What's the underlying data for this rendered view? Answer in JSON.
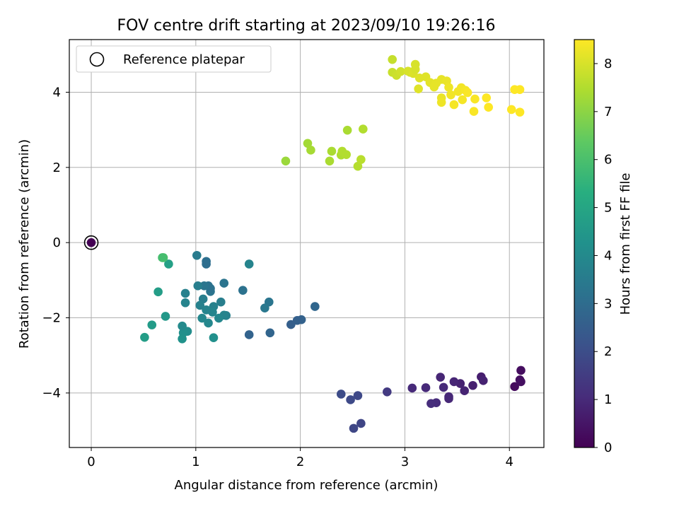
{
  "chart_data": {
    "type": "scatter",
    "title": "FOV centre drift starting at 2023/09/10 19:26:16",
    "xlabel": "Angular distance from reference (arcmin)",
    "ylabel": "Rotation from reference (arcmin)",
    "xlim": [
      -0.21,
      4.33
    ],
    "ylim": [
      -5.45,
      5.4
    ],
    "xticks": [
      0,
      1,
      2,
      3,
      4
    ],
    "yticks": [
      -4,
      -2,
      0,
      2,
      4
    ],
    "grid": true,
    "legend": {
      "placement": "upper-left",
      "entries": [
        "Reference platepar"
      ]
    },
    "reference_point": {
      "x": 0,
      "y": 0
    },
    "colorbar": {
      "label": "Hours from first FF file",
      "min": 0,
      "max": 8.5,
      "ticks": [
        0,
        1,
        2,
        3,
        4,
        5,
        6,
        7,
        8
      ],
      "colormap": "viridis"
    },
    "points": [
      {
        "x": 0.0,
        "y": 0.0,
        "c": 0.0
      },
      {
        "x": 4.05,
        "y": -3.83,
        "c": 0.25
      },
      {
        "x": 4.1,
        "y": -3.65,
        "c": 0.3
      },
      {
        "x": 4.11,
        "y": -3.7,
        "c": 0.35
      },
      {
        "x": 4.11,
        "y": -3.4,
        "c": 0.3
      },
      {
        "x": 3.73,
        "y": -3.57,
        "c": 0.7
      },
      {
        "x": 3.75,
        "y": -3.67,
        "c": 0.8
      },
      {
        "x": 3.65,
        "y": -3.8,
        "c": 0.75
      },
      {
        "x": 3.57,
        "y": -3.94,
        "c": 0.85
      },
      {
        "x": 3.53,
        "y": -3.75,
        "c": 0.8
      },
      {
        "x": 3.47,
        "y": -3.7,
        "c": 0.9
      },
      {
        "x": 3.42,
        "y": -4.1,
        "c": 0.95
      },
      {
        "x": 3.42,
        "y": -4.15,
        "c": 0.95
      },
      {
        "x": 3.37,
        "y": -3.85,
        "c": 1.0
      },
      {
        "x": 3.34,
        "y": -3.58,
        "c": 0.9
      },
      {
        "x": 3.3,
        "y": -4.26,
        "c": 1.05
      },
      {
        "x": 3.25,
        "y": -4.28,
        "c": 1.1
      },
      {
        "x": 3.2,
        "y": -3.86,
        "c": 1.0
      },
      {
        "x": 3.07,
        "y": -3.87,
        "c": 1.0
      },
      {
        "x": 2.83,
        "y": -3.97,
        "c": 1.45
      },
      {
        "x": 2.58,
        "y": -4.81,
        "c": 1.75
      },
      {
        "x": 2.51,
        "y": -4.94,
        "c": 1.8
      },
      {
        "x": 2.55,
        "y": -4.07,
        "c": 1.85
      },
      {
        "x": 2.48,
        "y": -4.18,
        "c": 1.9
      },
      {
        "x": 2.39,
        "y": -4.03,
        "c": 1.95
      },
      {
        "x": 2.14,
        "y": -1.7,
        "c": 2.8
      },
      {
        "x": 2.01,
        "y": -2.05,
        "c": 2.65
      },
      {
        "x": 1.97,
        "y": -2.07,
        "c": 2.6
      },
      {
        "x": 1.91,
        "y": -2.18,
        "c": 2.55
      },
      {
        "x": 1.71,
        "y": -2.4,
        "c": 2.75
      },
      {
        "x": 1.51,
        "y": -2.45,
        "c": 2.7
      },
      {
        "x": 1.7,
        "y": -1.58,
        "c": 3.3
      },
      {
        "x": 1.66,
        "y": -1.74,
        "c": 3.4
      },
      {
        "x": 1.51,
        "y": -0.57,
        "c": 3.8
      },
      {
        "x": 1.45,
        "y": -1.27,
        "c": 3.2
      },
      {
        "x": 1.27,
        "y": -1.08,
        "c": 3.25
      },
      {
        "x": 1.29,
        "y": -1.94,
        "c": 3.7
      },
      {
        "x": 1.27,
        "y": -1.93,
        "c": 3.8
      },
      {
        "x": 1.24,
        "y": -1.58,
        "c": 3.6
      },
      {
        "x": 1.22,
        "y": -2.01,
        "c": 3.9
      },
      {
        "x": 1.17,
        "y": -1.7,
        "c": 3.7
      },
      {
        "x": 1.16,
        "y": -1.85,
        "c": 3.85
      },
      {
        "x": 1.14,
        "y": -1.3,
        "c": 3.3
      },
      {
        "x": 1.14,
        "y": -1.22,
        "c": 3.2
      },
      {
        "x": 1.12,
        "y": -1.15,
        "c": 3.2
      },
      {
        "x": 1.1,
        "y": -0.5,
        "c": 3.1
      },
      {
        "x": 1.1,
        "y": -0.57,
        "c": 3.05
      },
      {
        "x": 1.08,
        "y": -1.15,
        "c": 3.3
      },
      {
        "x": 1.07,
        "y": -1.5,
        "c": 3.6
      },
      {
        "x": 1.06,
        "y": -2.01,
        "c": 3.9
      },
      {
        "x": 1.1,
        "y": -1.79,
        "c": 3.8
      },
      {
        "x": 1.12,
        "y": -2.14,
        "c": 3.9
      },
      {
        "x": 1.17,
        "y": -2.53,
        "c": 4.2
      },
      {
        "x": 1.04,
        "y": -1.67,
        "c": 3.7
      },
      {
        "x": 1.02,
        "y": -1.15,
        "c": 3.6
      },
      {
        "x": 1.01,
        "y": -0.34,
        "c": 3.5
      },
      {
        "x": 0.92,
        "y": -2.36,
        "c": 4.1
      },
      {
        "x": 0.88,
        "y": -2.4,
        "c": 4.2
      },
      {
        "x": 0.87,
        "y": -2.22,
        "c": 4.0
      },
      {
        "x": 0.87,
        "y": -2.56,
        "c": 4.3
      },
      {
        "x": 0.9,
        "y": -1.6,
        "c": 3.8
      },
      {
        "x": 0.9,
        "y": -1.35,
        "c": 3.7
      },
      {
        "x": 0.74,
        "y": -0.57,
        "c": 4.8
      },
      {
        "x": 0.71,
        "y": -1.96,
        "c": 4.5
      },
      {
        "x": 0.64,
        "y": -1.31,
        "c": 4.7
      },
      {
        "x": 0.58,
        "y": -2.19,
        "c": 4.6
      },
      {
        "x": 0.51,
        "y": -2.52,
        "c": 4.7
      },
      {
        "x": 0.69,
        "y": -0.4,
        "c": 6.0
      },
      {
        "x": 0.68,
        "y": -0.4,
        "c": 5.9
      },
      {
        "x": 1.86,
        "y": 2.17,
        "c": 7.2
      },
      {
        "x": 2.07,
        "y": 2.64,
        "c": 7.3
      },
      {
        "x": 2.1,
        "y": 2.46,
        "c": 7.35
      },
      {
        "x": 2.28,
        "y": 2.17,
        "c": 7.4
      },
      {
        "x": 2.3,
        "y": 2.43,
        "c": 7.4
      },
      {
        "x": 2.39,
        "y": 2.33,
        "c": 7.45
      },
      {
        "x": 2.4,
        "y": 2.43,
        "c": 7.5
      },
      {
        "x": 2.44,
        "y": 2.34,
        "c": 7.5
      },
      {
        "x": 2.45,
        "y": 2.99,
        "c": 7.4
      },
      {
        "x": 2.55,
        "y": 2.03,
        "c": 7.55
      },
      {
        "x": 2.58,
        "y": 2.21,
        "c": 7.6
      },
      {
        "x": 2.6,
        "y": 3.02,
        "c": 7.5
      },
      {
        "x": 2.88,
        "y": 4.87,
        "c": 7.75
      },
      {
        "x": 2.88,
        "y": 4.53,
        "c": 7.8
      },
      {
        "x": 2.92,
        "y": 4.45,
        "c": 7.85
      },
      {
        "x": 2.96,
        "y": 4.55,
        "c": 7.9
      },
      {
        "x": 3.03,
        "y": 4.56,
        "c": 8.0
      },
      {
        "x": 3.05,
        "y": 4.53,
        "c": 8.0
      },
      {
        "x": 3.08,
        "y": 4.5,
        "c": 8.05
      },
      {
        "x": 3.1,
        "y": 4.74,
        "c": 8.0
      },
      {
        "x": 3.1,
        "y": 4.61,
        "c": 8.0
      },
      {
        "x": 3.14,
        "y": 4.38,
        "c": 8.1
      },
      {
        "x": 3.13,
        "y": 4.09,
        "c": 8.1
      },
      {
        "x": 3.2,
        "y": 4.41,
        "c": 8.1
      },
      {
        "x": 3.24,
        "y": 4.26,
        "c": 8.15
      },
      {
        "x": 3.28,
        "y": 4.14,
        "c": 8.2
      },
      {
        "x": 3.3,
        "y": 4.24,
        "c": 8.2
      },
      {
        "x": 3.35,
        "y": 4.34,
        "c": 8.2
      },
      {
        "x": 3.35,
        "y": 3.85,
        "c": 8.25
      },
      {
        "x": 3.35,
        "y": 3.73,
        "c": 8.3
      },
      {
        "x": 3.4,
        "y": 4.3,
        "c": 8.25
      },
      {
        "x": 3.42,
        "y": 4.13,
        "c": 8.3
      },
      {
        "x": 3.44,
        "y": 3.93,
        "c": 8.35
      },
      {
        "x": 3.47,
        "y": 3.67,
        "c": 8.4
      },
      {
        "x": 3.51,
        "y": 4.02,
        "c": 8.35
      },
      {
        "x": 3.54,
        "y": 4.12,
        "c": 8.35
      },
      {
        "x": 3.55,
        "y": 3.8,
        "c": 8.4
      },
      {
        "x": 3.58,
        "y": 4.05,
        "c": 8.4
      },
      {
        "x": 3.6,
        "y": 3.99,
        "c": 8.45
      },
      {
        "x": 3.66,
        "y": 3.49,
        "c": 8.45
      },
      {
        "x": 3.67,
        "y": 3.82,
        "c": 8.45
      },
      {
        "x": 3.78,
        "y": 3.85,
        "c": 8.5
      },
      {
        "x": 3.8,
        "y": 3.6,
        "c": 8.5
      },
      {
        "x": 4.02,
        "y": 3.54,
        "c": 8.5
      },
      {
        "x": 4.05,
        "y": 4.07,
        "c": 8.5
      },
      {
        "x": 4.1,
        "y": 4.07,
        "c": 8.5
      },
      {
        "x": 4.1,
        "y": 3.47,
        "c": 8.5
      }
    ]
  }
}
